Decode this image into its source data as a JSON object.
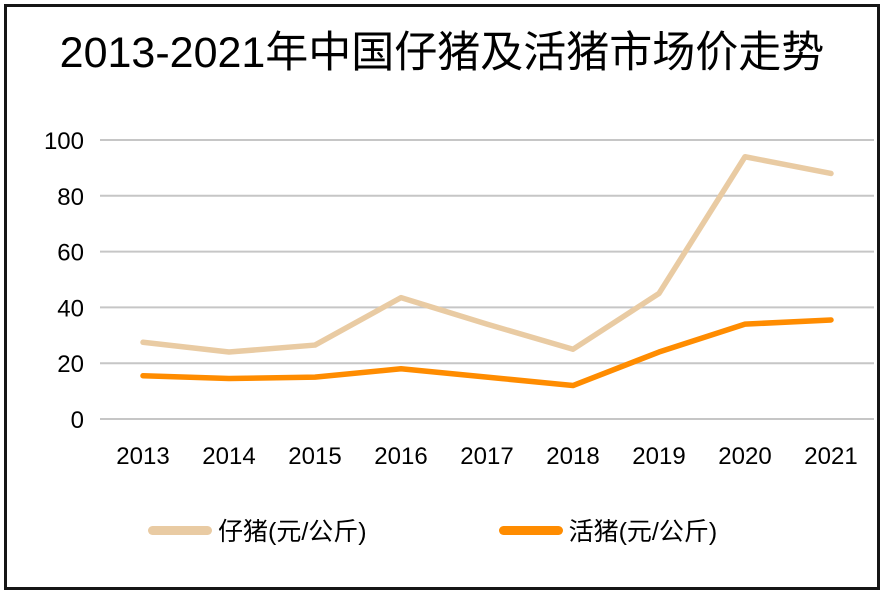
{
  "colors": {
    "piglet": "#E9CBA3",
    "livehog": "#FF8C00",
    "gridline": "#C6C6C6",
    "border": "#161616",
    "background": "#FFFFFF",
    "text": "#000000"
  },
  "chart_data": {
    "type": "line",
    "title": "2013-2021年中国仔猪及活猪市场价走势",
    "categories": [
      "2013",
      "2014",
      "2015",
      "2016",
      "2017",
      "2018",
      "2019",
      "2020",
      "2021"
    ],
    "series": [
      {
        "name": "仔猪(元/公斤)",
        "color": "#E9CBA3",
        "values": [
          27.5,
          24,
          26.5,
          43.5,
          34,
          25,
          45,
          94,
          88
        ]
      },
      {
        "name": "活猪(元/公斤)",
        "color": "#FF8C00",
        "values": [
          15.5,
          14.5,
          15,
          18,
          15,
          12,
          24,
          34,
          35.5
        ]
      }
    ],
    "ylim": [
      0,
      100
    ],
    "yticks": [
      0,
      20,
      40,
      60,
      80,
      100
    ],
    "xlabel": "",
    "ylabel": "",
    "grid": "horizontal-only",
    "legend_position": "bottom"
  }
}
